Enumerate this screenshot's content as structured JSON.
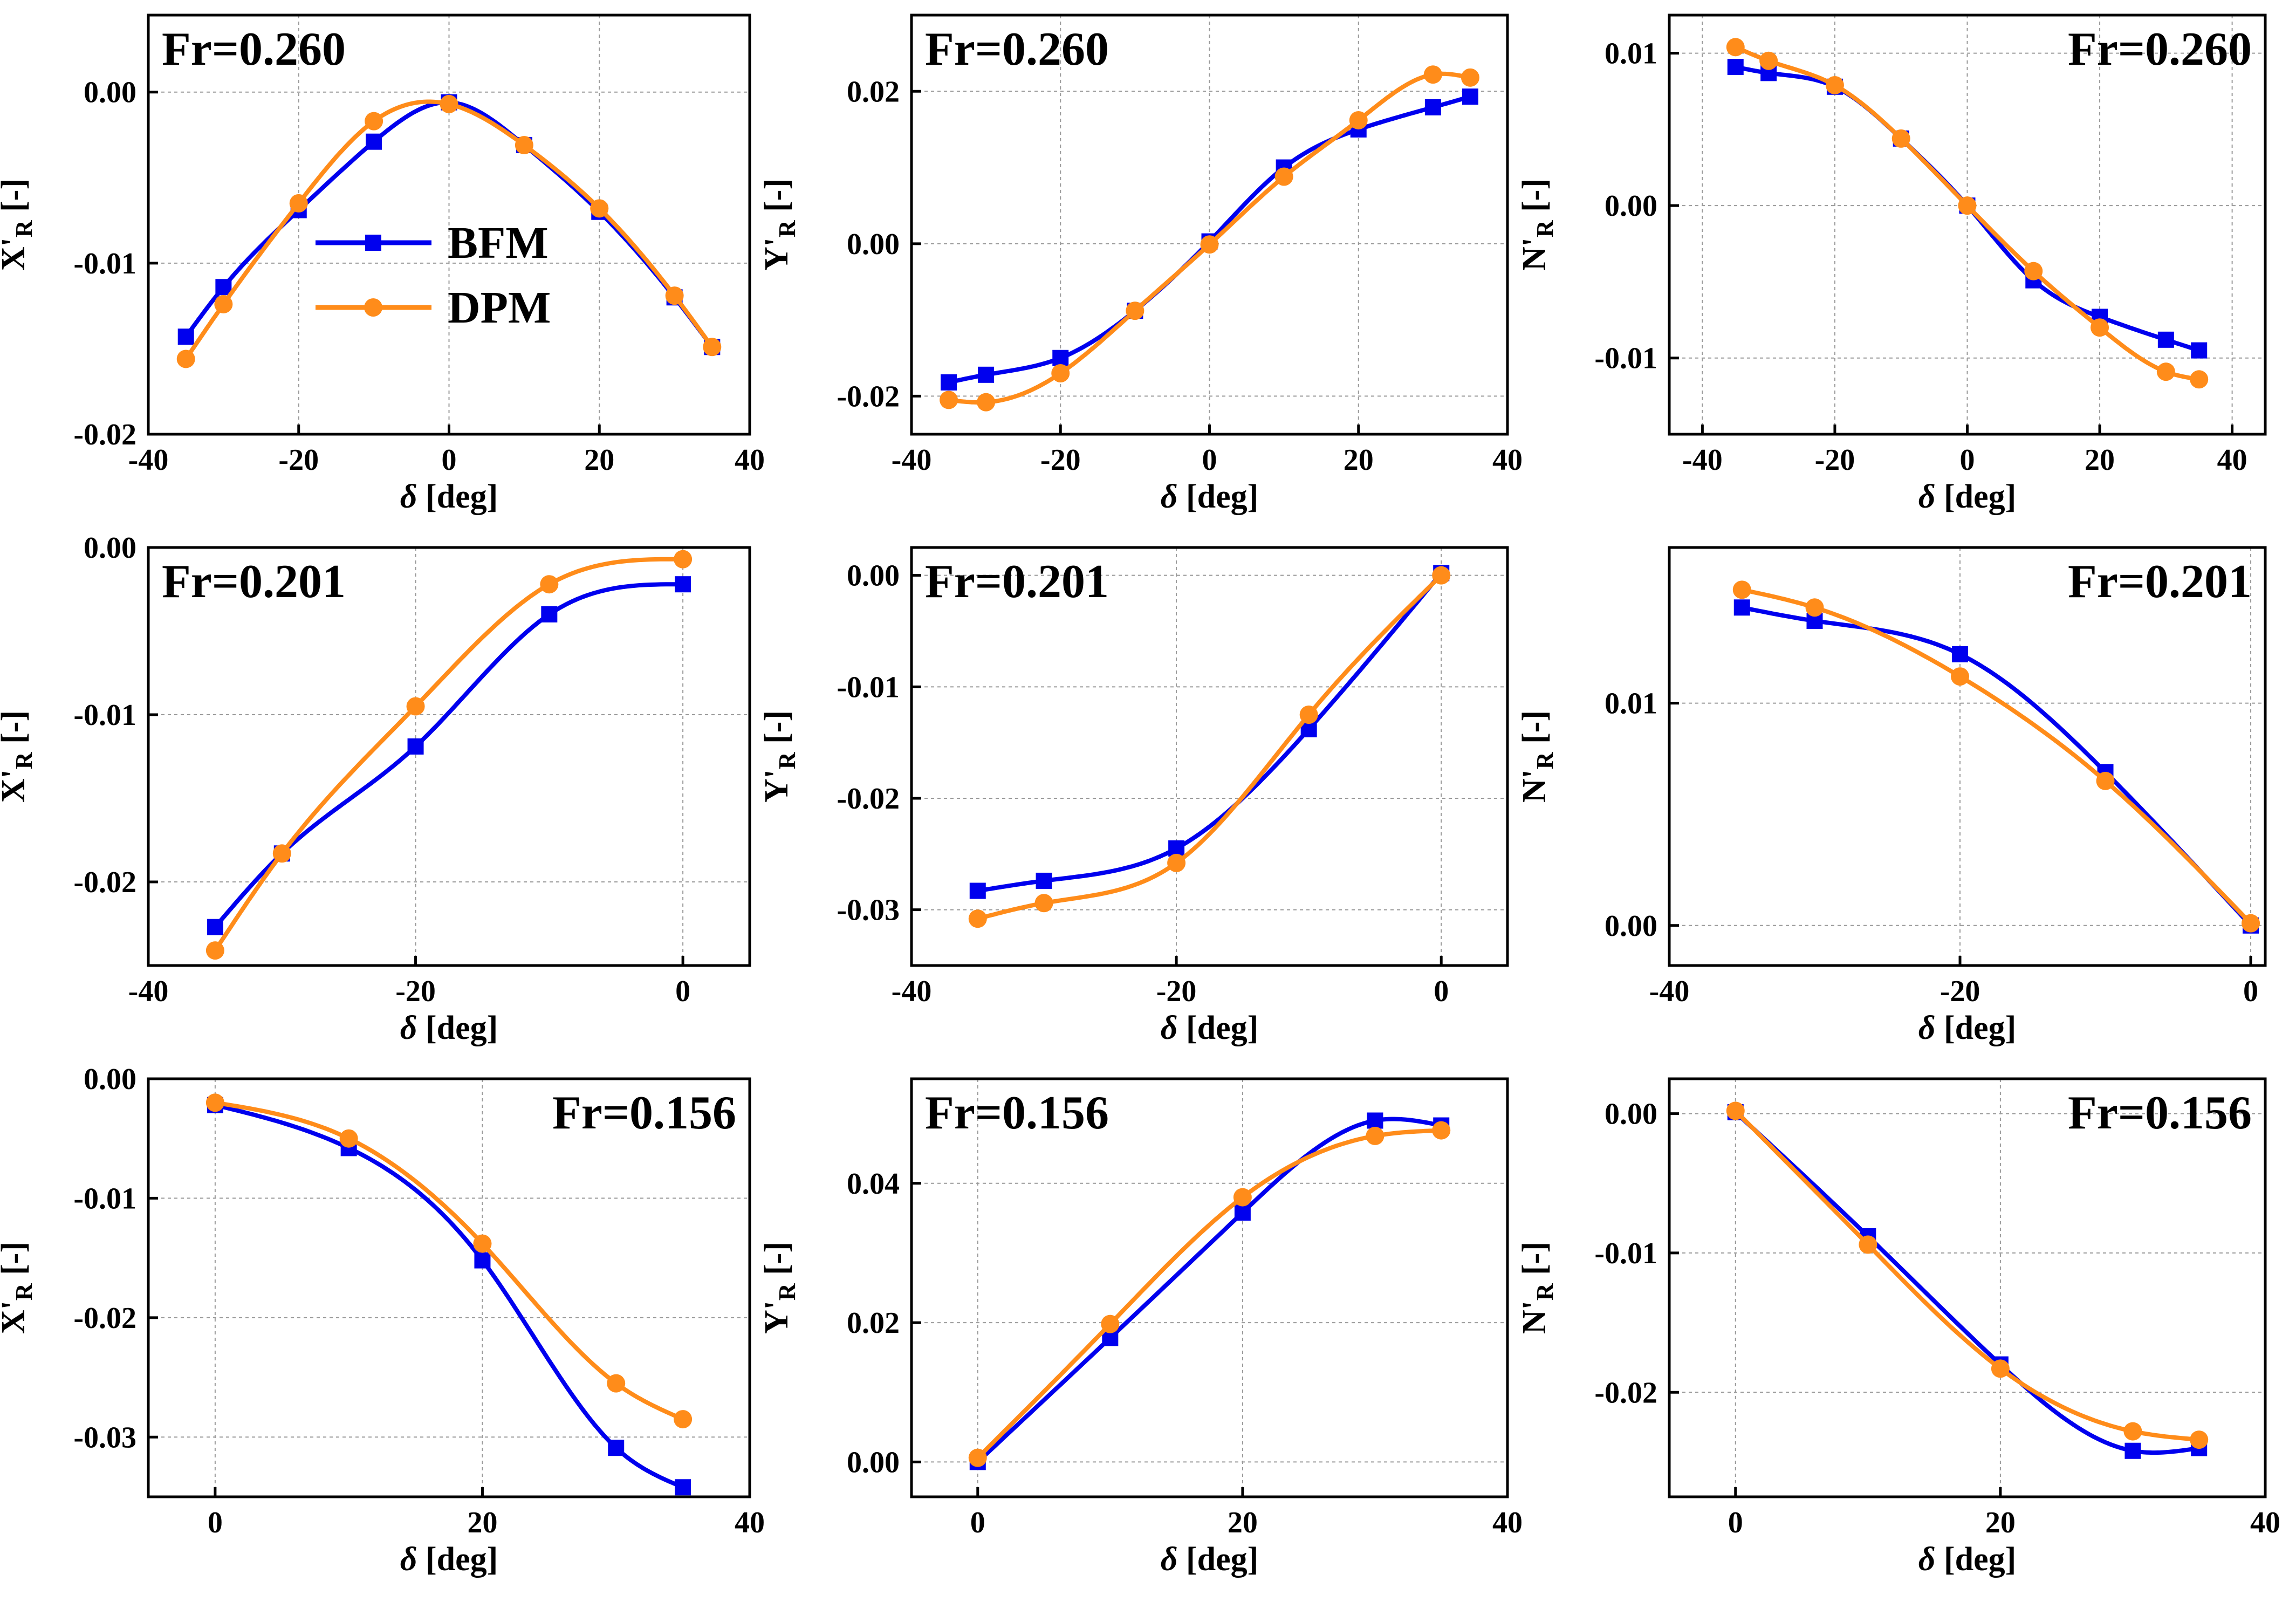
{
  "colors": {
    "BFM": "#0000ee",
    "DPM": "#ff8c1a"
  },
  "legend": {
    "placement": "inside first panel, center-left",
    "entries": [
      {
        "name": "BFM",
        "marker": "square"
      },
      {
        "name": "DPM",
        "marker": "circle"
      }
    ]
  },
  "chart_data": [
    {
      "type": "line",
      "label": "Fr=0.260",
      "label_pos": "top-left",
      "xlabel": "δ [deg]",
      "ylabel_main": "X'",
      "ylabel_sub": "R",
      "ylabel_unit": " [-]",
      "xlim": [
        -40,
        40
      ],
      "ylim": [
        -0.02,
        0.0045
      ],
      "xticks": [
        -40,
        -20,
        0,
        20,
        40
      ],
      "xtick_labels": [
        "-40",
        "-20",
        "0",
        "20",
        "40"
      ],
      "yticks": [
        -0.02,
        -0.01,
        0.0
      ],
      "ytick_labels": [
        "-0.02",
        "-0.01",
        "0.00"
      ],
      "grid": true,
      "show_legend": true,
      "series": [
        {
          "name": "BFM",
          "x": [
            -35,
            -30,
            -20,
            -10,
            0,
            10,
            20,
            30,
            35
          ],
          "y": [
            -0.0143,
            -0.0114,
            -0.0069,
            -0.0029,
            -0.0006,
            -0.0031,
            -0.007,
            -0.012,
            -0.0149
          ]
        },
        {
          "name": "DPM",
          "x": [
            -35,
            -30,
            -20,
            -10,
            0,
            10,
            20,
            30,
            35
          ],
          "y": [
            -0.0156,
            -0.0124,
            -0.0065,
            -0.0017,
            -0.0007,
            -0.0031,
            -0.0068,
            -0.0119,
            -0.0149
          ]
        }
      ]
    },
    {
      "type": "line",
      "label": "Fr=0.260",
      "label_pos": "top-left",
      "xlabel": "δ [deg]",
      "ylabel_main": "Y'",
      "ylabel_sub": "R",
      "ylabel_unit": " [-]",
      "xlim": [
        -40,
        40
      ],
      "ylim": [
        -0.025,
        0.03
      ],
      "xticks": [
        -40,
        -20,
        0,
        20,
        40
      ],
      "xtick_labels": [
        "-40",
        "-20",
        "0",
        "20",
        "40"
      ],
      "yticks": [
        -0.02,
        0.0,
        0.02
      ],
      "ytick_labels": [
        "-0.02",
        "0.00",
        "0.02"
      ],
      "grid": true,
      "series": [
        {
          "name": "BFM",
          "x": [
            -35,
            -30,
            -20,
            -10,
            0,
            10,
            20,
            30,
            35
          ],
          "y": [
            -0.0182,
            -0.0172,
            -0.015,
            -0.0088,
            0.0003,
            0.01,
            0.015,
            0.0179,
            0.0193
          ]
        },
        {
          "name": "DPM",
          "x": [
            -35,
            -30,
            -20,
            -10,
            0,
            10,
            20,
            30,
            35
          ],
          "y": [
            -0.0205,
            -0.0208,
            -0.017,
            -0.0088,
            -0.0001,
            0.0088,
            0.0162,
            0.0222,
            0.0218
          ]
        }
      ]
    },
    {
      "type": "line",
      "label": "Fr=0.260",
      "label_pos": "top-right",
      "xlabel": "δ [deg]",
      "ylabel_main": "N'",
      "ylabel_sub": "R",
      "ylabel_unit": " [-]",
      "xlim": [
        -45,
        45
      ],
      "ylim": [
        -0.015,
        0.0125
      ],
      "xticks": [
        -40,
        -20,
        0,
        20,
        40
      ],
      "xtick_labels": [
        "-40",
        "-20",
        "0",
        "20",
        "40"
      ],
      "yticks": [
        -0.01,
        0.0,
        0.01
      ],
      "ytick_labels": [
        "-0.01",
        "0.00",
        "0.01"
      ],
      "grid": true,
      "series": [
        {
          "name": "BFM",
          "x": [
            -35,
            -30,
            -20,
            -10,
            0,
            10,
            20,
            30,
            35
          ],
          "y": [
            0.0091,
            0.0087,
            0.0078,
            0.0044,
            0.0,
            -0.0049,
            -0.0073,
            -0.0088,
            -0.0095
          ]
        },
        {
          "name": "DPM",
          "x": [
            -35,
            -30,
            -20,
            -10,
            0,
            10,
            20,
            30,
            35
          ],
          "y": [
            0.0104,
            0.0095,
            0.0079,
            0.0044,
            0.0,
            -0.0043,
            -0.008,
            -0.0109,
            -0.0114
          ]
        }
      ]
    },
    {
      "type": "line",
      "label": "Fr=0.201",
      "label_pos": "top-left",
      "xlabel": "δ [deg]",
      "ylabel_main": "X'",
      "ylabel_sub": "R",
      "ylabel_unit": " [-]",
      "xlim": [
        -40,
        5
      ],
      "ylim": [
        -0.025,
        0.0
      ],
      "xticks": [
        -40,
        -20,
        0
      ],
      "xtick_labels": [
        "-40",
        "-20",
        "0"
      ],
      "yticks": [
        -0.02,
        -0.01,
        0.0
      ],
      "ytick_labels": [
        "-0.02",
        "-0.01",
        "0.00"
      ],
      "grid": true,
      "series": [
        {
          "name": "BFM",
          "x": [
            -35,
            -30,
            -20,
            -10,
            0
          ],
          "y": [
            -0.0227,
            -0.0183,
            -0.0119,
            -0.004,
            -0.0022
          ]
        },
        {
          "name": "DPM",
          "x": [
            -35,
            -30,
            -20,
            -10,
            0
          ],
          "y": [
            -0.0241,
            -0.0183,
            -0.0095,
            -0.0022,
            -0.0007
          ]
        }
      ]
    },
    {
      "type": "line",
      "label": "Fr=0.201",
      "label_pos": "top-left",
      "xlabel": "δ [deg]",
      "ylabel_main": "Y'",
      "ylabel_sub": "R",
      "ylabel_unit": " [-]",
      "xlim": [
        -40,
        5
      ],
      "ylim": [
        -0.035,
        0.0025
      ],
      "xticks": [
        -40,
        -20,
        0
      ],
      "xtick_labels": [
        "-40",
        "-20",
        "0"
      ],
      "yticks": [
        -0.03,
        -0.02,
        -0.01,
        0.0
      ],
      "ytick_labels": [
        "-0.03",
        "-0.02",
        "-0.01",
        "0.00"
      ],
      "grid": true,
      "series": [
        {
          "name": "BFM",
          "x": [
            -35,
            -30,
            -20,
            -10,
            0
          ],
          "y": [
            -0.0283,
            -0.0274,
            -0.0245,
            -0.0138,
            0.0002
          ]
        },
        {
          "name": "DPM",
          "x": [
            -35,
            -30,
            -20,
            -10,
            0
          ],
          "y": [
            -0.0308,
            -0.0294,
            -0.0258,
            -0.0125,
            0.0
          ]
        }
      ]
    },
    {
      "type": "line",
      "label": "Fr=0.201",
      "label_pos": "top-right",
      "xlabel": "δ [deg]",
      "ylabel_main": "N'",
      "ylabel_sub": "R",
      "ylabel_unit": " [-]",
      "xlim": [
        -40,
        1
      ],
      "ylim": [
        -0.0018,
        0.017
      ],
      "xticks": [
        -40,
        -20,
        0
      ],
      "xtick_labels": [
        "-40",
        "-20",
        "0"
      ],
      "yticks": [
        0.0,
        0.01
      ],
      "ytick_labels": [
        "0.00",
        "0.01"
      ],
      "grid": true,
      "series": [
        {
          "name": "BFM",
          "x": [
            -35,
            -30,
            -20,
            -10,
            0
          ],
          "y": [
            0.0143,
            0.0137,
            0.0122,
            0.0069,
            0.0
          ]
        },
        {
          "name": "DPM",
          "x": [
            -35,
            -30,
            -20,
            -10,
            0
          ],
          "y": [
            0.0151,
            0.0143,
            0.0112,
            0.0065,
            0.0001
          ]
        }
      ]
    },
    {
      "type": "line",
      "label": "Fr=0.156",
      "label_pos": "top-right",
      "xlabel": "δ [deg]",
      "ylabel_main": "X'",
      "ylabel_sub": "R",
      "ylabel_unit": " [-]",
      "xlim": [
        -5,
        40
      ],
      "ylim": [
        -0.035,
        0.0
      ],
      "xticks": [
        0,
        20,
        40
      ],
      "xtick_labels": [
        "0",
        "20",
        "40"
      ],
      "yticks": [
        -0.03,
        -0.02,
        -0.01,
        0.0
      ],
      "ytick_labels": [
        "-0.03",
        "-0.02",
        "-0.01",
        "0.00"
      ],
      "grid": true,
      "series": [
        {
          "name": "BFM",
          "x": [
            0,
            10,
            20,
            30,
            35
          ],
          "y": [
            -0.0022,
            -0.0058,
            -0.0152,
            -0.0309,
            -0.0342
          ]
        },
        {
          "name": "DPM",
          "x": [
            0,
            10,
            20,
            30,
            35
          ],
          "y": [
            -0.002,
            -0.005,
            -0.0138,
            -0.0255,
            -0.0285
          ]
        }
      ]
    },
    {
      "type": "line",
      "label": "Fr=0.156",
      "label_pos": "top-left",
      "xlabel": "δ [deg]",
      "ylabel_main": "Y'",
      "ylabel_sub": "R",
      "ylabel_unit": " [-]",
      "xlim": [
        -5,
        40
      ],
      "ylim": [
        -0.005,
        0.055
      ],
      "xticks": [
        0,
        20,
        40
      ],
      "xtick_labels": [
        "0",
        "20",
        "40"
      ],
      "yticks": [
        0.0,
        0.02,
        0.04
      ],
      "ytick_labels": [
        "0.00",
        "0.02",
        "0.04"
      ],
      "grid": true,
      "series": [
        {
          "name": "BFM",
          "x": [
            0,
            10,
            20,
            30,
            35
          ],
          "y": [
            0.0,
            0.0178,
            0.0358,
            0.049,
            0.0483
          ]
        },
        {
          "name": "DPM",
          "x": [
            0,
            10,
            20,
            30,
            35
          ],
          "y": [
            0.0006,
            0.0198,
            0.038,
            0.0468,
            0.0476
          ]
        }
      ]
    },
    {
      "type": "line",
      "label": "Fr=0.156",
      "label_pos": "top-right",
      "xlabel": "δ [deg]",
      "ylabel_main": "N'",
      "ylabel_sub": "R",
      "ylabel_unit": " [-]",
      "xlim": [
        -5,
        40
      ],
      "ylim": [
        -0.0275,
        0.0025
      ],
      "xticks": [
        0,
        20,
        40
      ],
      "xtick_labels": [
        "0",
        "20",
        "40"
      ],
      "yticks": [
        -0.02,
        -0.01,
        0.0
      ],
      "ytick_labels": [
        "-0.02",
        "-0.01",
        "0.00"
      ],
      "grid": true,
      "series": [
        {
          "name": "BFM",
          "x": [
            0,
            10,
            20,
            30,
            35
          ],
          "y": [
            0.0001,
            -0.0088,
            -0.018,
            -0.0242,
            -0.024
          ]
        },
        {
          "name": "DPM",
          "x": [
            0,
            10,
            20,
            30,
            35
          ],
          "y": [
            0.0002,
            -0.0094,
            -0.0183,
            -0.0228,
            -0.0234
          ]
        }
      ]
    }
  ]
}
